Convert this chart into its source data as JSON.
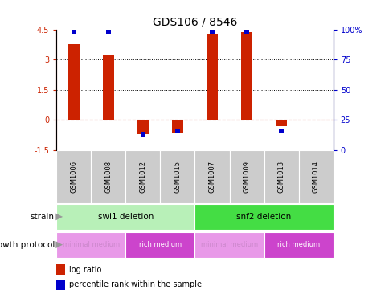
{
  "title": "GDS106 / 8546",
  "samples": [
    "GSM1006",
    "GSM1008",
    "GSM1012",
    "GSM1015",
    "GSM1007",
    "GSM1009",
    "GSM1013",
    "GSM1014"
  ],
  "log_ratios": [
    3.75,
    3.2,
    -0.7,
    -0.65,
    4.3,
    4.35,
    -0.3,
    0.0
  ],
  "percentile_ranks": [
    100,
    100,
    15,
    18,
    100,
    100,
    18,
    0
  ],
  "ylim": [
    -1.5,
    4.5
  ],
  "yticks_left": [
    -1.5,
    0,
    1.5,
    3,
    4.5
  ],
  "yticks_right_vals": [
    0,
    25,
    50,
    75,
    100
  ],
  "gridlines_at": [
    3.0,
    1.5
  ],
  "strain_groups": [
    {
      "label": "swi1 deletion",
      "start": 0,
      "end": 4,
      "color": "#b8f0b8"
    },
    {
      "label": "snf2 deletion",
      "start": 4,
      "end": 8,
      "color": "#44dd44"
    }
  ],
  "growth_groups": [
    {
      "label": "minimal medium",
      "start": 0,
      "end": 2,
      "color": "#e899e8"
    },
    {
      "label": "rich medium",
      "start": 2,
      "end": 4,
      "color": "#cc44cc"
    },
    {
      "label": "minimal medium",
      "start": 4,
      "end": 6,
      "color": "#e899e8"
    },
    {
      "label": "rich medium",
      "start": 6,
      "end": 8,
      "color": "#cc44cc"
    }
  ],
  "sample_bg_color": "#cccccc",
  "bar_color": "#cc2200",
  "pct_color": "#0000cc",
  "bar_width": 0.32,
  "pct_bar_width": 0.15,
  "pct_bar_height": 0.22,
  "strain_label": "strain",
  "growth_label": "growth protocol",
  "legend_log": "log ratio",
  "legend_pct": "percentile rank within the sample",
  "title_fontsize": 10,
  "tick_fontsize": 7,
  "sample_fontsize": 6,
  "annotation_fontsize": 7.5,
  "growth_text_color_light": "#cc88cc",
  "growth_text_color_dark": "#cc44cc"
}
